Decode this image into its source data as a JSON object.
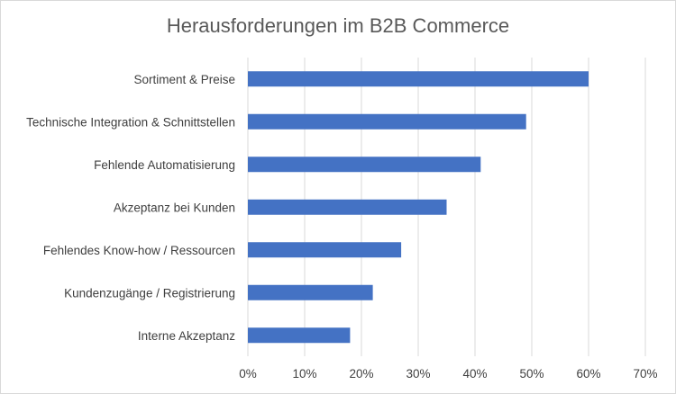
{
  "chart_data": {
    "type": "bar",
    "orientation": "horizontal",
    "title": "Herausforderungen im B2B Commerce",
    "categories": [
      "Sortiment & Preise",
      "Technische Integration & Schnittstellen",
      "Fehlende Automatisierung",
      "Akzeptanz bei Kunden",
      "Fehlendes Know-how / Ressourcen",
      "Kundenzugänge / Registrierung",
      "Interne Akzeptanz"
    ],
    "values": [
      0.6,
      0.49,
      0.41,
      0.35,
      0.27,
      0.22,
      0.18
    ],
    "xlim": [
      0,
      0.7
    ],
    "x_ticks": [
      "0%",
      "10%",
      "20%",
      "30%",
      "40%",
      "50%",
      "60%",
      "70%"
    ],
    "grid": true,
    "bar_color": "#4472c4",
    "legend": "none"
  }
}
